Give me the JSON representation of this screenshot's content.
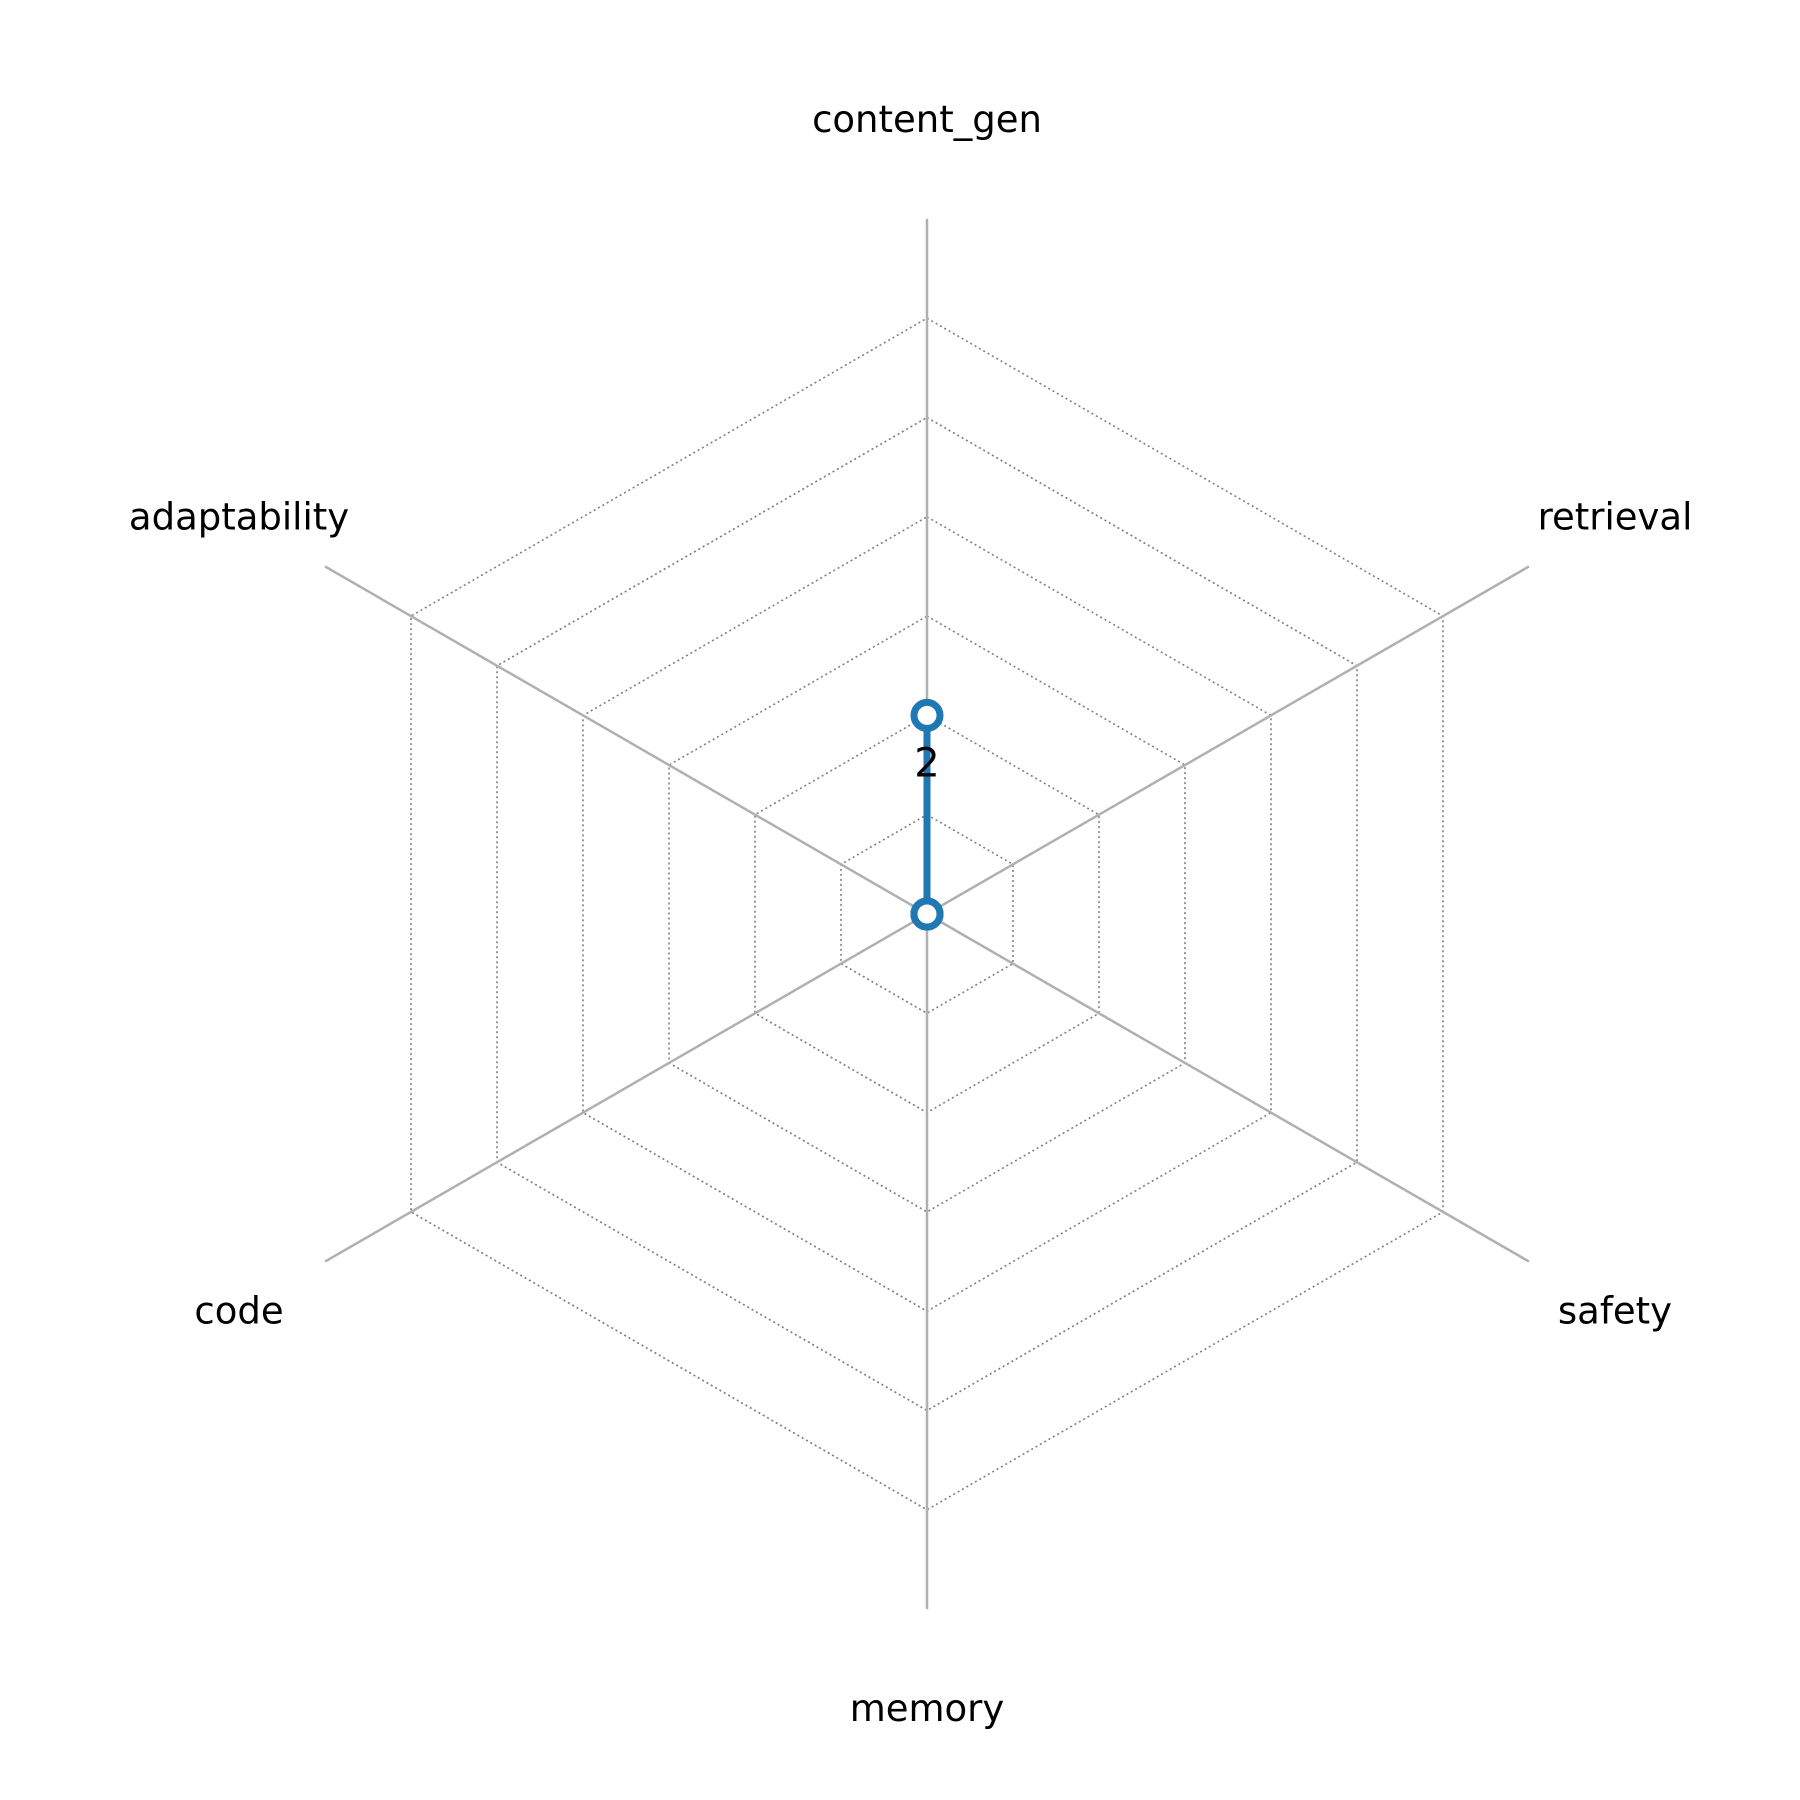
{
  "chart_data": {
    "type": "radar",
    "categories": [
      "content_gen",
      "retrieval",
      "safety",
      "memory",
      "code",
      "adaptability"
    ],
    "series": [
      {
        "values": [
          2,
          0,
          0,
          0,
          0,
          0
        ],
        "color": "#1f77b4"
      }
    ],
    "data_labels": [
      "2"
    ],
    "rlim": [
      0,
      7
    ],
    "grid_rings": [
      1,
      2,
      3,
      4,
      5,
      6
    ],
    "grid": true,
    "colors": {
      "axis": "#b0b0b0",
      "grid": "#808080",
      "series": "#1f77b4"
    }
  }
}
